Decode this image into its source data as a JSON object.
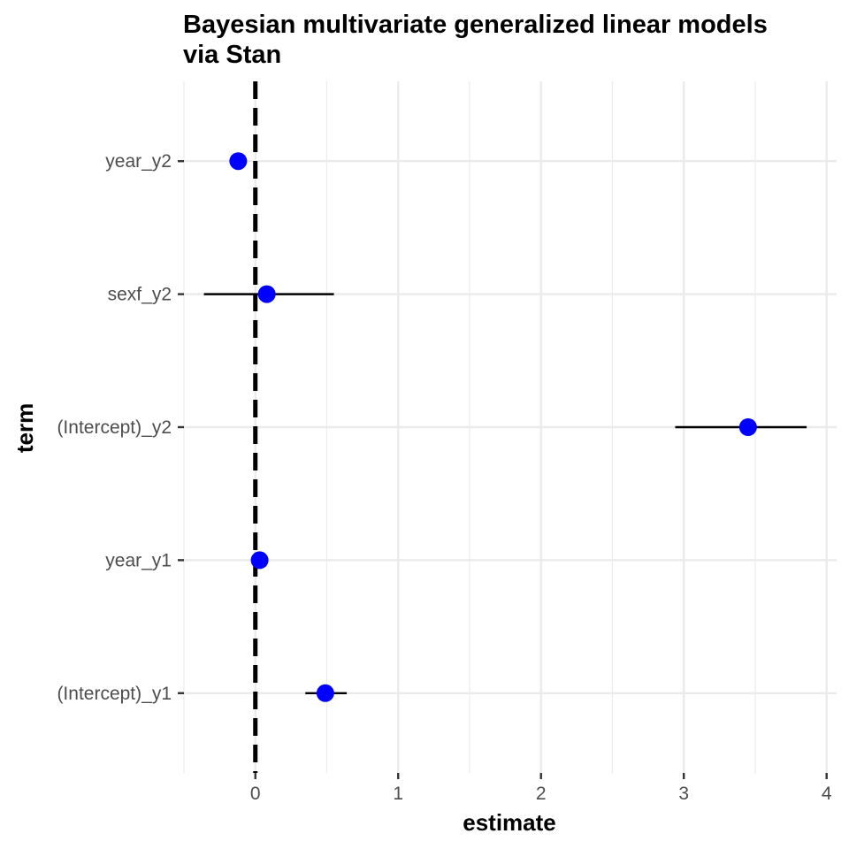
{
  "chart_data": {
    "type": "scatter",
    "title_line1": "Bayesian multivariate generalized linear models",
    "title_line2": "via Stan",
    "xlabel": "estimate",
    "ylabel": "term",
    "xlim": [
      -0.5,
      4.07
    ],
    "x_ticks": [
      0,
      1,
      2,
      3,
      4
    ],
    "x_tick_labels": [
      "0",
      "1",
      "2",
      "3",
      "4"
    ],
    "reference_line": {
      "x": 0,
      "style": "dashed"
    },
    "grid": true,
    "terms": [
      "(Intercept)_y1",
      "year_y1",
      "(Intercept)_y2",
      "sexf_y2",
      "year_y2"
    ],
    "points": [
      {
        "term": "(Intercept)_y1",
        "estimate": 0.49,
        "low": 0.35,
        "high": 0.64
      },
      {
        "term": "year_y1",
        "estimate": 0.03,
        "low": 0.01,
        "high": 0.05
      },
      {
        "term": "(Intercept)_y2",
        "estimate": 3.45,
        "low": 2.94,
        "high": 3.86
      },
      {
        "term": "sexf_y2",
        "estimate": 0.08,
        "low": -0.36,
        "high": 0.55
      },
      {
        "term": "year_y2",
        "estimate": -0.12,
        "low": -0.14,
        "high": -0.1
      }
    ],
    "point_color": "#0000ff",
    "errorbar_color": "#000000"
  }
}
